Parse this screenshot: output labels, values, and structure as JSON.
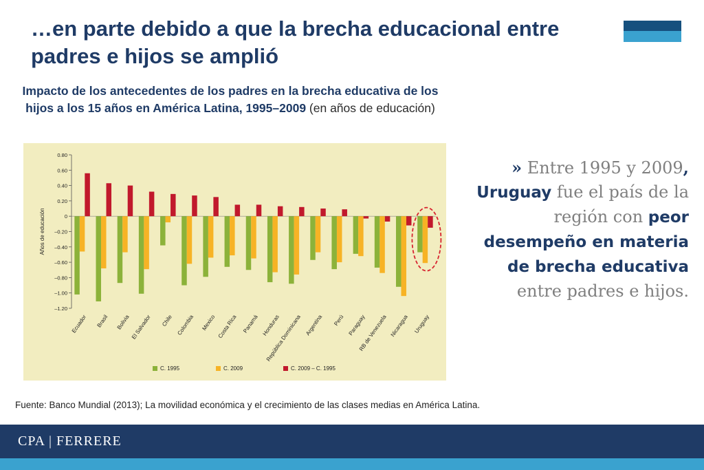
{
  "slide": {
    "title": "…en parte debido a que la brecha educacional entre padres e hijos se amplió",
    "chart_heading_bold": "Impacto de los antecedentes de los padres en la brecha educativa de los hijos a los 15 años en América Latina, 1995–2009",
    "chart_heading_normal": " (en años de educación)",
    "callout": {
      "mark": "»",
      "t1": " Entre 1995  y 2009",
      "t1_end": ",",
      "hl1": "Uruguay",
      "t2": " fue el país de la región con ",
      "hl2": "peor desempeño en materia de brecha educativa",
      "t3": " entre padres e hijos."
    },
    "source": "Fuente: Banco Mundial (2013); La movilidad económica y el crecimiento de las clases medias en América Latina.",
    "brand": "CPA | FERRERE"
  },
  "colors": {
    "navy": "#1f3b66",
    "light_blue": "#3aa2cf",
    "c1995": "#8cb23a",
    "c2009": "#f7b325",
    "diff": "#c1192c",
    "panel": "#f2edc0",
    "highlight_ring": "#d7232f"
  },
  "chart_data": {
    "type": "bar",
    "ylabel": "Años de educación",
    "ylim": [
      -1.2,
      0.8
    ],
    "yticks": [
      "0.80",
      "0.60",
      "0.40",
      "0.20",
      "0",
      "–0.20",
      "–0.40",
      "–0.60",
      "–0.80",
      "–1.00",
      "–1.20"
    ],
    "ytick_values": [
      0.8,
      0.6,
      0.4,
      0.2,
      0,
      -0.2,
      -0.4,
      -0.6,
      -0.8,
      -1.0,
      -1.2
    ],
    "categories": [
      "Ecuador",
      "Brasil",
      "Bolivia",
      "El Salvador",
      "Chile",
      "Colombia",
      "Mexico",
      "Costa Rica",
      "Panamá",
      "Honduras",
      "República Dominicana",
      "Argentina",
      "Perú",
      "Paraguay",
      "RB de Venezuela",
      "Nicaragua",
      "Uruguay"
    ],
    "series": [
      {
        "name": "C. 1995",
        "values": [
          -1.02,
          -1.11,
          -0.87,
          -1.01,
          -0.38,
          -0.9,
          -0.79,
          -0.66,
          -0.7,
          -0.86,
          -0.88,
          -0.57,
          -0.69,
          -0.49,
          -0.67,
          -0.92,
          -0.47
        ]
      },
      {
        "name": "C. 2009",
        "values": [
          -0.46,
          -0.68,
          -0.47,
          -0.69,
          -0.08,
          -0.62,
          -0.54,
          -0.51,
          -0.55,
          -0.73,
          -0.76,
          -0.47,
          -0.6,
          -0.52,
          -0.74,
          -1.04,
          -0.61
        ]
      },
      {
        "name": "C. 2009 – C. 1995",
        "values": [
          0.56,
          0.43,
          0.4,
          0.32,
          0.29,
          0.27,
          0.25,
          0.15,
          0.15,
          0.13,
          0.12,
          0.1,
          0.09,
          -0.03,
          -0.07,
          -0.12,
          -0.15
        ]
      }
    ],
    "legend_position": "bottom",
    "highlight": "Uruguay"
  }
}
